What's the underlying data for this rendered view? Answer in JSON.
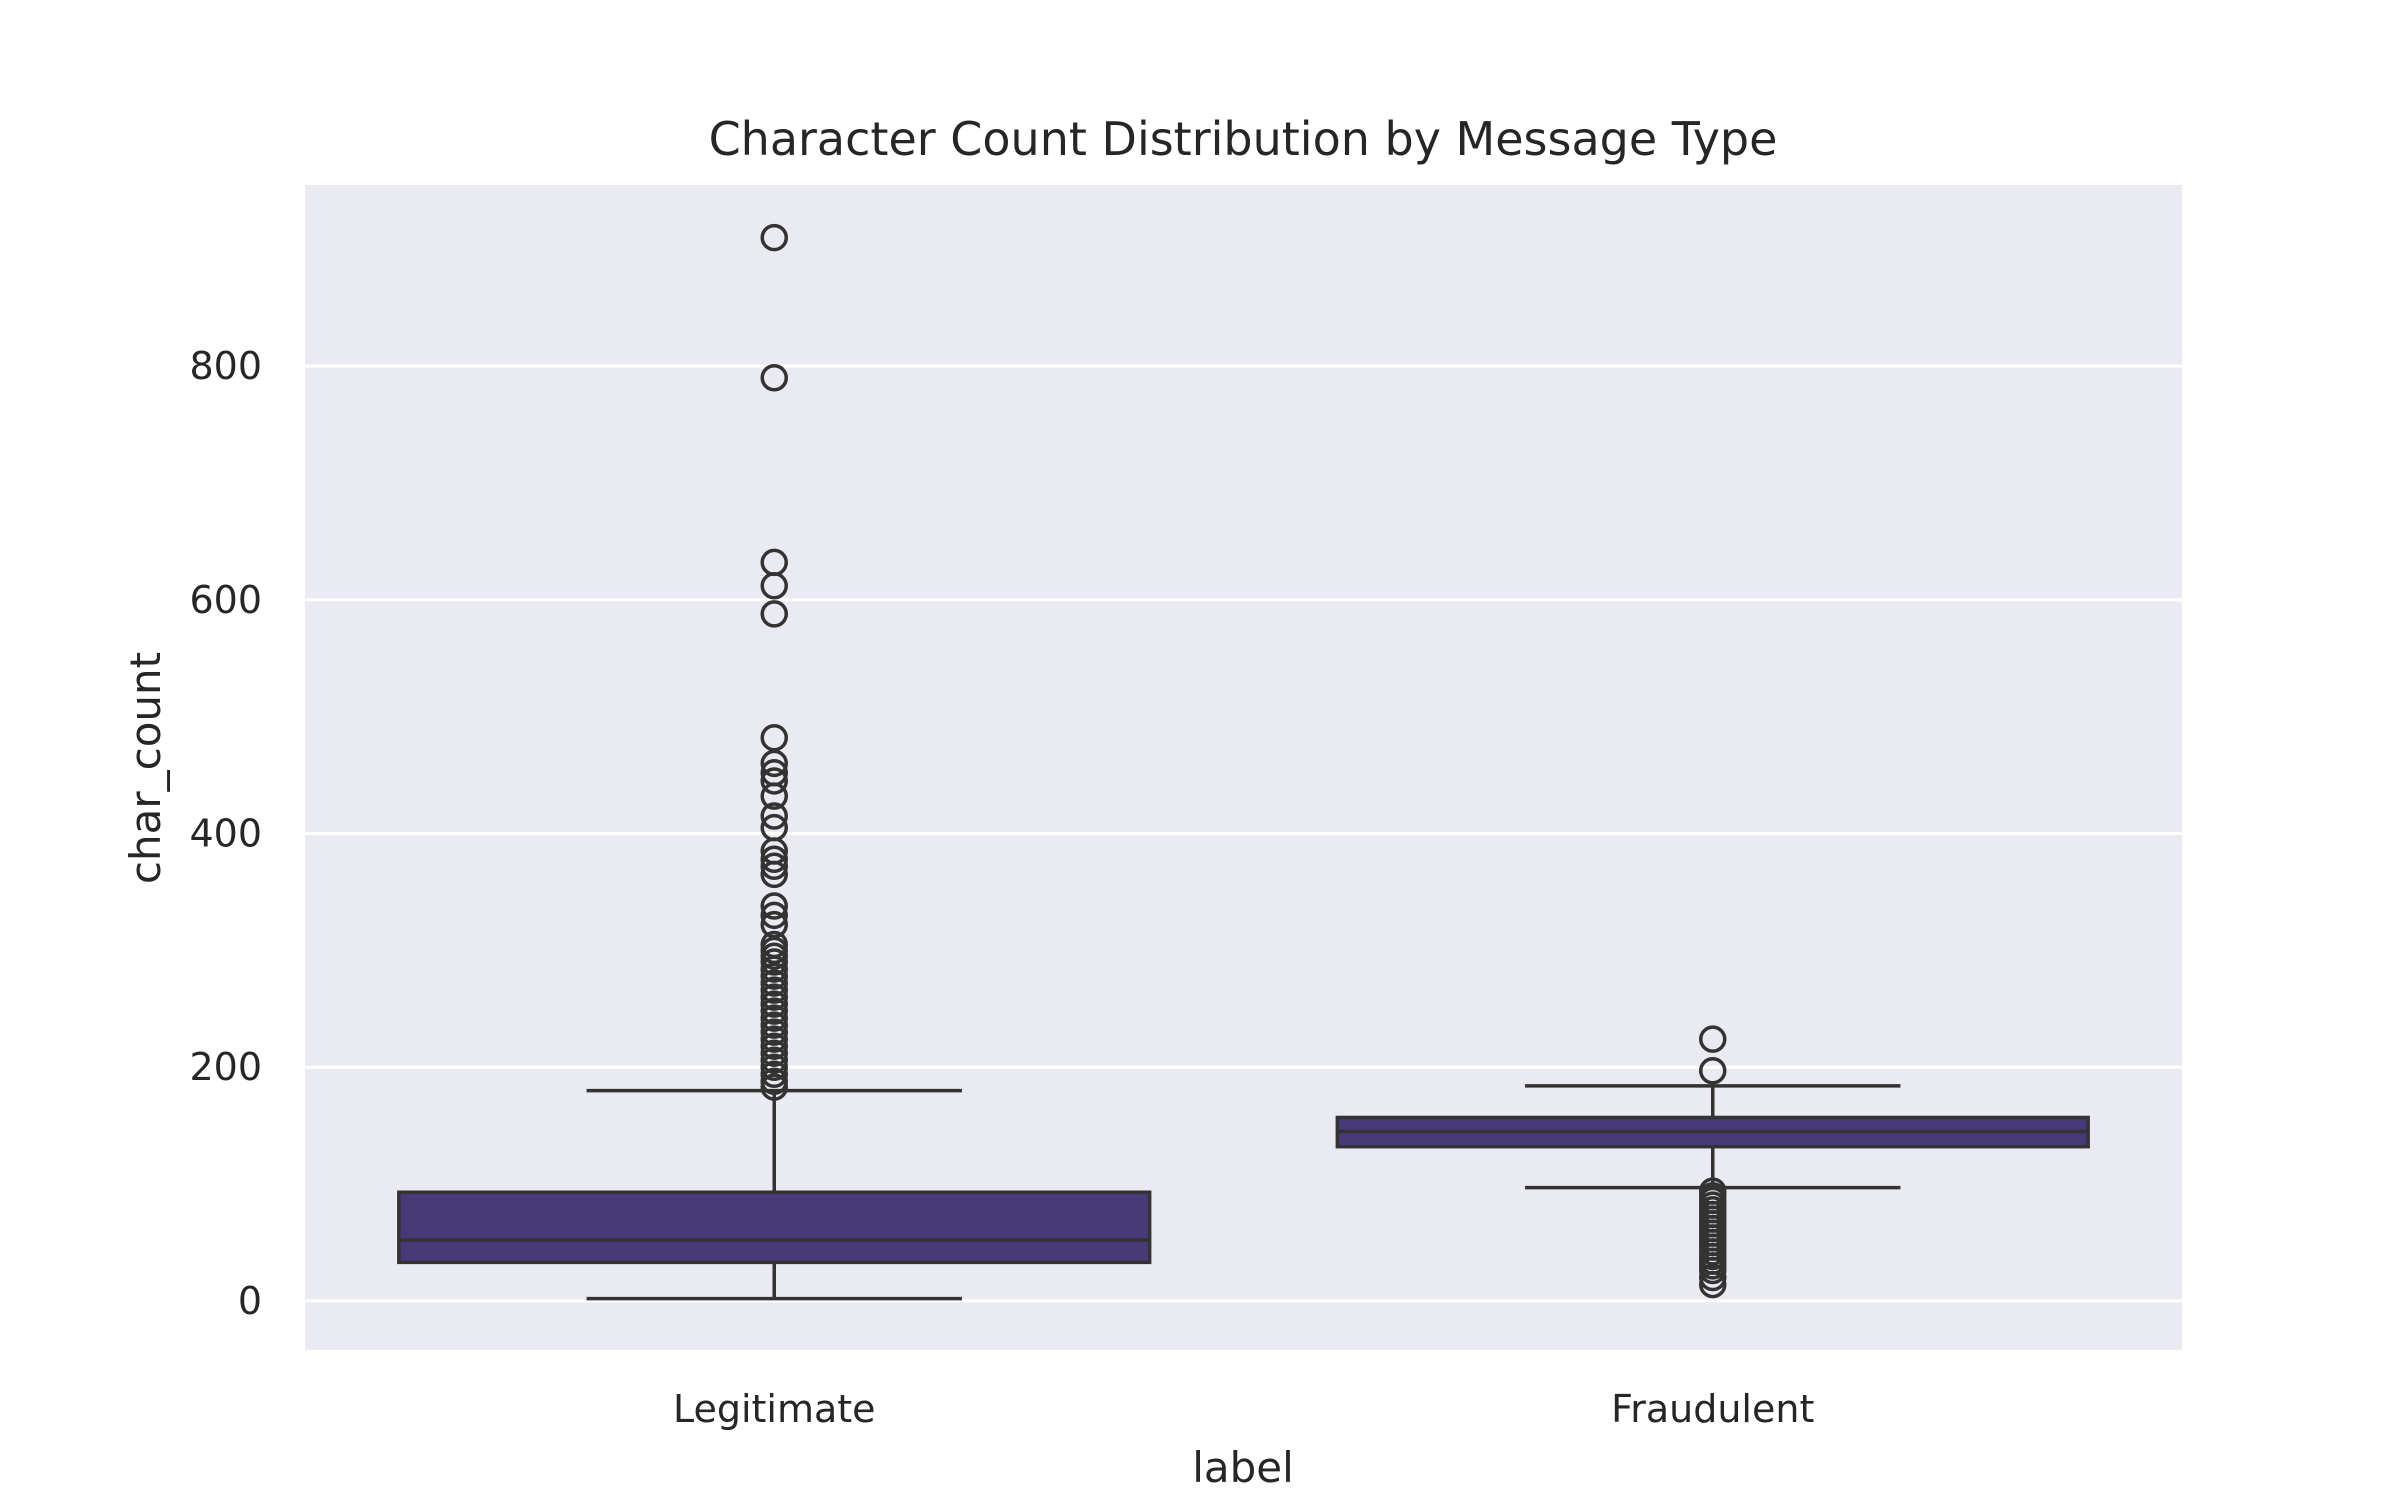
{
  "chart_data": {
    "type": "box",
    "title": "Character Count Distribution by Message Type",
    "xlabel": "label",
    "ylabel": "char_count",
    "ylim": [
      -42,
      955
    ],
    "yticks": [
      "0",
      "200",
      "400",
      "600",
      "800"
    ],
    "grid": true,
    "categories": [
      "Legitimate",
      "Fraudulent"
    ],
    "boxes": [
      {
        "category": "Legitimate",
        "whisker_low": 2,
        "q1": 33,
        "median": 52,
        "q3": 93,
        "whisker_high": 180,
        "outliers": [
          910,
          790,
          632,
          612,
          588,
          482,
          460,
          452,
          445,
          432,
          415,
          405,
          385,
          378,
          372,
          365,
          338,
          330,
          322,
          305,
          300,
          295,
          290,
          284,
          278,
          272,
          266,
          260,
          254,
          248,
          242,
          236,
          230,
          224,
          218,
          212,
          206,
          200,
          194,
          188,
          183
        ]
      },
      {
        "category": "Fraudulent",
        "whisker_low": 97,
        "q1": 132,
        "median": 145,
        "q3": 157,
        "whisker_high": 184,
        "outliers": [
          224,
          197,
          94,
          90,
          86,
          82,
          78,
          74,
          70,
          66,
          62,
          58,
          54,
          50,
          46,
          42,
          38,
          34,
          30,
          26,
          20,
          14
        ]
      }
    ],
    "colors": {
      "box_fill": "#483A78",
      "line": "#333333",
      "plot_bg": "#EAEAF2",
      "grid": "#FFFFFF",
      "outlier_face": "#FFFFFF"
    }
  }
}
